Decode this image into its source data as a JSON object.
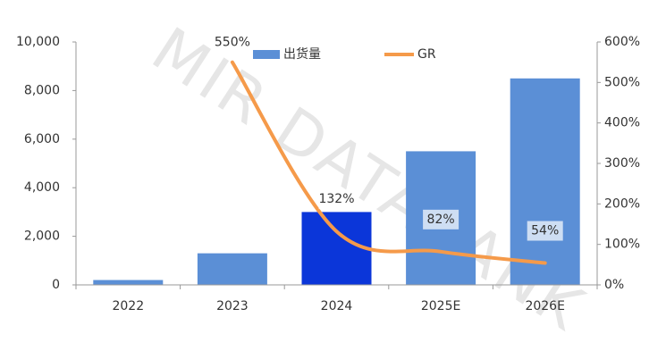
{
  "chart_data": {
    "type": "bar_line",
    "watermark": "MIR DATABANK",
    "categories": [
      "2022",
      "2023",
      "2024",
      "2025E",
      "2026E"
    ],
    "series": [
      {
        "name": "出货量",
        "type": "bar",
        "color": "#5b8fd6",
        "colors": [
          "#5b8fd6",
          "#5b8fd6",
          "#0b36d9",
          "#5b8fd6",
          "#5b8fd6"
        ],
        "values": [
          200,
          1300,
          3000,
          5500,
          8500
        ]
      },
      {
        "name": "GR",
        "type": "line",
        "axis": "y2",
        "color": "#f59a4a",
        "values": [
          null,
          550,
          132,
          82,
          54
        ],
        "value_labels": [
          null,
          "550%",
          "132%",
          "82%",
          "54%"
        ]
      }
    ],
    "ylim": [
      0,
      10000
    ],
    "yticks": [
      0,
      {
        "value": 2000,
        "label": "2,000"
      },
      {
        "value": 4000,
        "label": "4,000"
      },
      {
        "value": 6000,
        "label": "6,000"
      },
      {
        "value": 8000,
        "label": "8,000"
      },
      {
        "value": 10000,
        "label": "10,000"
      }
    ],
    "y2lim": [
      0,
      600
    ],
    "y2ticks": [
      {
        "value": 0,
        "label": "0%"
      },
      {
        "value": 100,
        "label": "100%"
      },
      {
        "value": 200,
        "label": "200%"
      },
      {
        "value": 300,
        "label": "300%"
      },
      {
        "value": 400,
        "label": "400%"
      },
      {
        "value": 500,
        "label": "500%"
      },
      {
        "value": 600,
        "label": "600%"
      }
    ],
    "legend": "top",
    "grid": false
  }
}
